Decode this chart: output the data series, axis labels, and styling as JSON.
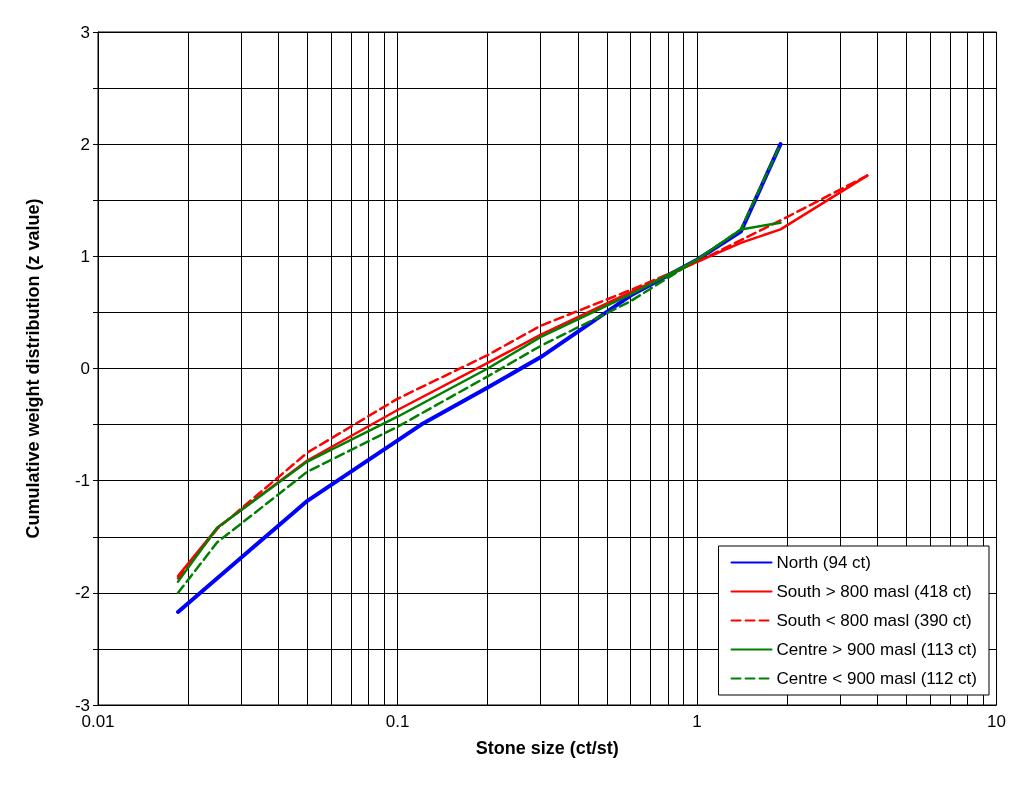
{
  "chart_data": {
    "type": "line",
    "xlabel": "Stone size (ct/st)",
    "ylabel": "Cumulative weight distribution (z value)",
    "log": "x",
    "xlim": [
      0.01,
      10
    ],
    "xticks": [
      0.01,
      {
        "value": 0.02,
        "label": null
      },
      {
        "value": 0.03,
        "label": null
      },
      {
        "value": 0.04,
        "label": null
      },
      {
        "value": 0.05,
        "label": null
      },
      {
        "value": 0.06,
        "label": null
      },
      {
        "value": 0.07,
        "label": null
      },
      {
        "value": 0.08,
        "label": null
      },
      {
        "value": 0.09,
        "label": null
      },
      0.1,
      {
        "value": 0.2,
        "label": null
      },
      {
        "value": 0.3,
        "label": null
      },
      {
        "value": 0.4,
        "label": null
      },
      {
        "value": 0.5,
        "label": null
      },
      {
        "value": 0.6,
        "label": null
      },
      {
        "value": 0.7,
        "label": null
      },
      {
        "value": 0.8,
        "label": null
      },
      {
        "value": 0.9,
        "label": null
      },
      1,
      {
        "value": 2,
        "label": null
      },
      {
        "value": 3,
        "label": null
      },
      {
        "value": 4,
        "label": null
      },
      {
        "value": 5,
        "label": null
      },
      {
        "value": 6,
        "label": null
      },
      {
        "value": 7,
        "label": null
      },
      {
        "value": 8,
        "label": null
      },
      {
        "value": 9,
        "label": null
      },
      10
    ],
    "ylim": [
      -3,
      3
    ],
    "yticks": [
      -3,
      {
        "value": -2.5,
        "label": null
      },
      -2,
      {
        "value": -1.5,
        "label": null
      },
      -1,
      {
        "value": -0.5,
        "label": null
      },
      0,
      {
        "value": 0.5,
        "label": null
      },
      1,
      {
        "value": 1.5,
        "label": null
      },
      2,
      {
        "value": 2.5,
        "label": null
      },
      3
    ],
    "grid": true,
    "legend": "bottom right",
    "marker": "none",
    "series": [
      {
        "name": "North (94 ct)",
        "color": "#0000ff",
        "line_style": "solid",
        "x": [
          0.0185,
          0.05,
          0.12,
          0.2,
          0.3,
          0.6,
          1.0,
          1.4,
          1.9
        ],
        "values": [
          -2.17,
          -1.18,
          -0.5,
          -0.17,
          0.1,
          0.65,
          0.97,
          1.22,
          2.0
        ]
      },
      {
        "name": "South > 800 masl (418 ct)",
        "color": "#ff0000",
        "line_style": "solid",
        "x": [
          0.0185,
          0.025,
          0.05,
          0.1,
          0.2,
          0.3,
          0.6,
          1.0,
          1.4,
          1.9,
          3.7
        ],
        "values": [
          -1.85,
          -1.42,
          -0.82,
          -0.37,
          0.05,
          0.3,
          0.68,
          0.95,
          1.12,
          1.24,
          1.72
        ]
      },
      {
        "name": "South < 800 masl (390 ct)",
        "color": "#ff0000",
        "line_style": "dashed",
        "x": [
          0.0185,
          0.025,
          0.05,
          0.1,
          0.2,
          0.3,
          0.6,
          1.0,
          1.9,
          3.7
        ],
        "values": [
          -1.87,
          -1.43,
          -0.75,
          -0.27,
          0.12,
          0.38,
          0.7,
          0.95,
          1.32,
          1.72
        ]
      },
      {
        "name": "Centre > 900 masl (113 ct)",
        "color": "#008000",
        "line_style": "solid",
        "x": [
          0.0185,
          0.025,
          0.05,
          0.1,
          0.2,
          0.3,
          0.6,
          1.0,
          1.4,
          1.9
        ],
        "values": [
          -1.9,
          -1.42,
          -0.83,
          -0.43,
          0.0,
          0.28,
          0.66,
          0.97,
          1.24,
          1.3
        ]
      },
      {
        "name": "Centre < 900 masl (112 ct)",
        "color": "#008000",
        "line_style": "dashed",
        "x": [
          0.0185,
          0.025,
          0.05,
          0.1,
          0.2,
          0.3,
          0.6,
          1.0,
          1.4,
          1.9
        ],
        "values": [
          -2.0,
          -1.55,
          -0.92,
          -0.52,
          -0.07,
          0.2,
          0.6,
          0.97,
          1.24,
          2.0
        ]
      }
    ]
  }
}
